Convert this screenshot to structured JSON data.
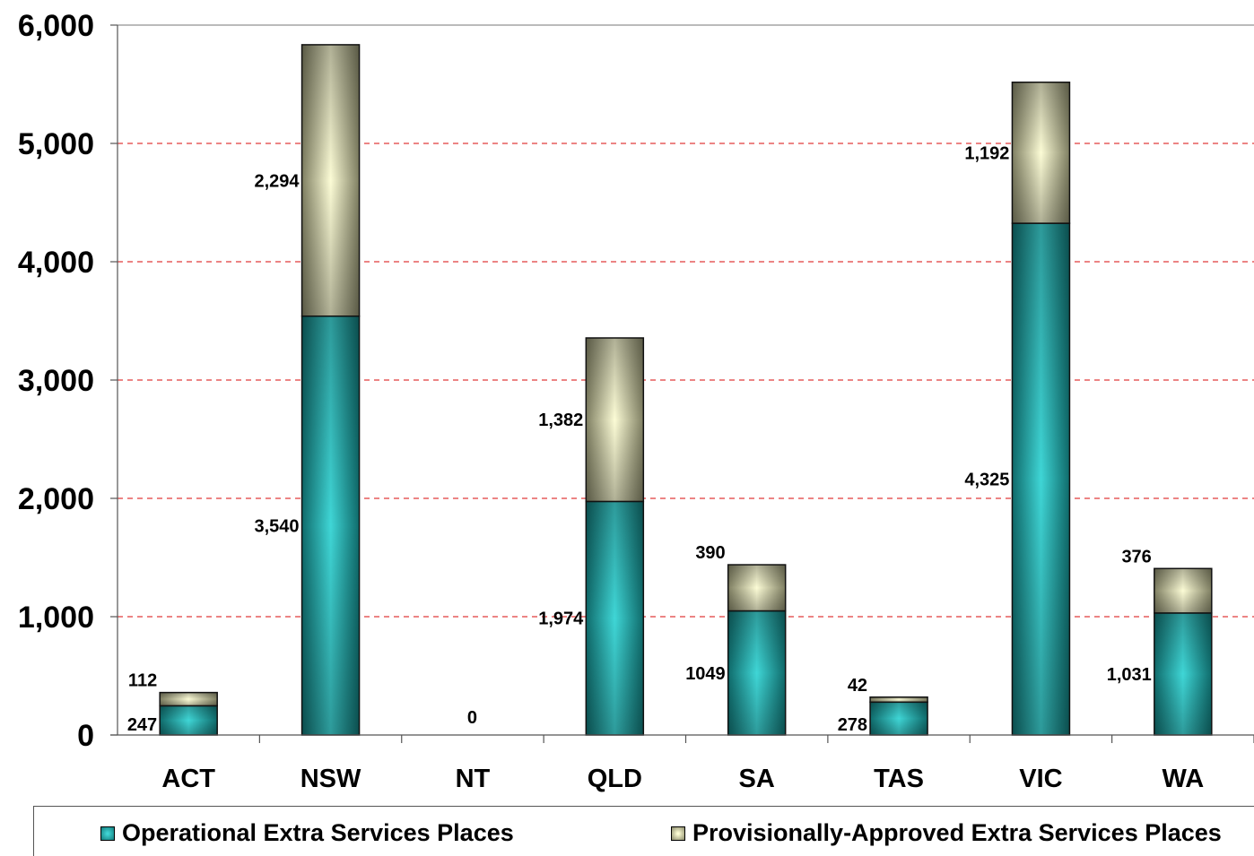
{
  "chart_data": {
    "type": "bar",
    "stacked": true,
    "categories": [
      "ACT",
      "NSW",
      "NT",
      "QLD",
      "SA",
      "TAS",
      "VIC",
      "WA"
    ],
    "series": [
      {
        "name": "Operational Extra Services Places",
        "values": [
          247,
          3540,
          0,
          1974,
          1049,
          278,
          4325,
          1031
        ],
        "labels": [
          "247",
          "3,540",
          "0",
          "1,974",
          "1049",
          "278",
          "4,325",
          "1,031"
        ],
        "color": "#2bbcbc"
      },
      {
        "name": "Provisionally-Approved Extra Services Places",
        "values": [
          112,
          2294,
          0,
          1382,
          390,
          42,
          1192,
          376
        ],
        "labels": [
          "112",
          "2,294",
          "",
          "1,382",
          "390",
          "42",
          "1,192",
          "376"
        ],
        "color": "#e6e6b8"
      }
    ],
    "yticks": [
      "0",
      "1,000",
      "2,000",
      "3,000",
      "4,000",
      "5,000",
      "6,000"
    ],
    "ylim": [
      0,
      6000
    ],
    "grid": true,
    "legend_position": "bottom"
  },
  "legend": {
    "operational": "Operational Extra Services Places",
    "provisional": "Provisionally-Approved Extra Services Places"
  }
}
